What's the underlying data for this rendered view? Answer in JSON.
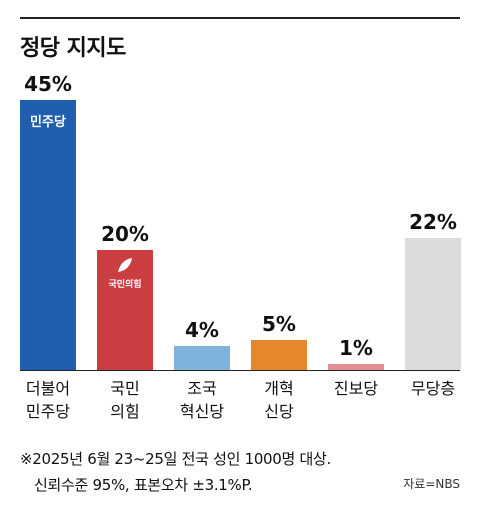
{
  "title": "정당 지지도",
  "chart_data": {
    "type": "bar",
    "title": "정당 지지도",
    "categories": [
      [
        "더불어",
        "민주당"
      ],
      [
        "국민",
        "의힘"
      ],
      [
        "조국",
        "혁신당"
      ],
      [
        "개혁",
        "신당"
      ],
      [
        "진보당"
      ],
      [
        "무당층"
      ]
    ],
    "values": [
      45,
      20,
      4,
      5,
      1,
      22
    ],
    "value_labels": [
      "45%",
      "20%",
      "4%",
      "5%",
      "1%",
      "22%"
    ],
    "colors": [
      "#1f5fad",
      "#cc3d42",
      "#7fb3dc",
      "#e8862c",
      "#e48d92",
      "#dcdcdc"
    ],
    "bar_logos": {
      "0": [
        "민주당"
      ],
      "1": [
        "국민의힘"
      ]
    },
    "ylim": [
      0,
      45
    ],
    "xlabel": "",
    "ylabel": "",
    "grid": false,
    "legend": "none"
  },
  "footnote": {
    "line1": "※2025년 6월 23~25일 전국 성인 1000명 대상.",
    "line2": "신뢰수준 95%, 표본오차 ±3.1%P."
  },
  "source": "자료=NBS"
}
